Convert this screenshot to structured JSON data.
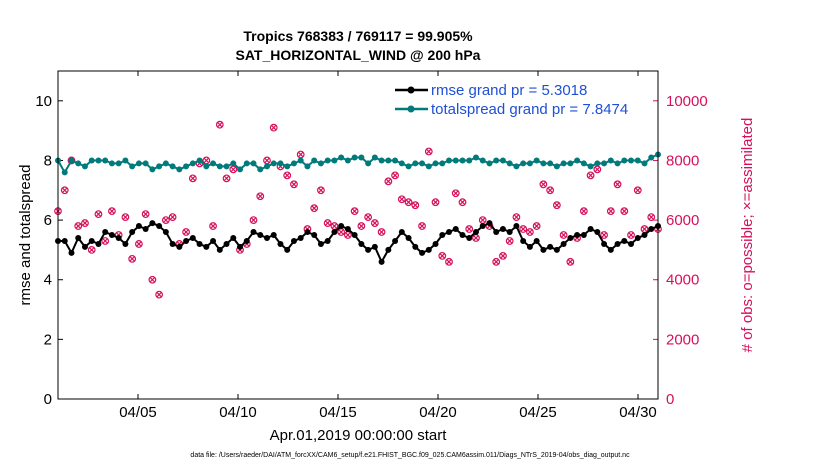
{
  "chart_data": {
    "type": "line",
    "title": "Tropics 768383 / 769117 = 99.905%",
    "subtitle": "SAT_HORIZONTAL_WIND @ 200 hPa",
    "xlabel": "Apr.01,2019 00:00:00 start",
    "ylabel_left": "rmse and totalspread",
    "ylabel_right": "# of obs: o=possible; ×=assimilated",
    "xlim": [
      1,
      31
    ],
    "ylim_left": [
      0,
      11
    ],
    "ylim_right": [
      0,
      11000
    ],
    "x_ticks": [
      5,
      10,
      15,
      20,
      25,
      30
    ],
    "x_tick_labels": [
      "04/05",
      "04/10",
      "04/15",
      "04/20",
      "04/25",
      "04/30"
    ],
    "y_ticks_left": [
      "0",
      "2",
      "4",
      "6",
      "8",
      "10"
    ],
    "y_ticks_right": [
      "0",
      "2000",
      "4000",
      "6000",
      "8000",
      "10000"
    ],
    "legend_position": "top-right",
    "legend": [
      "rmse grand pr = 5.3018",
      "totalspread grand pr = 7.8474"
    ],
    "series": [
      {
        "name": "rmse",
        "axis": "left",
        "color": "#000000",
        "values": [
          5.3,
          5.3,
          4.9,
          5.4,
          5.1,
          5.3,
          5.2,
          5.6,
          5.5,
          5.4,
          5.2,
          5.6,
          5.8,
          5.7,
          5.9,
          5.8,
          5.6,
          5.2,
          5.1,
          5.3,
          5.4,
          5.2,
          5.1,
          5.3,
          5.0,
          5.2,
          5.4,
          5.1,
          5.3,
          5.6,
          5.5,
          5.4,
          5.5,
          5.2,
          5.0,
          5.3,
          5.4,
          5.6,
          5.5,
          5.2,
          5.3,
          5.6,
          5.8,
          5.7,
          5.5,
          5.2,
          5.0,
          5.1,
          4.6,
          5.0,
          5.3,
          5.6,
          5.4,
          5.1,
          4.9,
          5.0,
          5.2,
          5.5,
          5.6,
          5.7,
          5.5,
          5.4,
          5.6,
          5.8,
          5.9,
          5.6,
          5.7,
          5.6,
          5.8,
          5.3,
          5.1,
          5.3,
          5.0,
          5.1,
          5.0,
          5.2,
          5.4,
          5.5,
          5.5,
          5.7,
          5.6,
          5.2,
          5.0,
          5.2,
          5.3,
          5.2,
          5.4,
          5.5,
          5.7,
          5.8
        ]
      },
      {
        "name": "totalspread",
        "axis": "left",
        "color": "#007a7a",
        "values": [
          8.0,
          7.6,
          8.0,
          7.9,
          7.8,
          8.0,
          8.0,
          8.0,
          7.9,
          7.9,
          8.0,
          7.8,
          7.9,
          7.9,
          7.7,
          7.8,
          7.9,
          7.8,
          7.7,
          7.8,
          7.9,
          8.0,
          7.8,
          7.9,
          7.8,
          7.8,
          7.9,
          7.7,
          7.9,
          7.9,
          7.7,
          7.8,
          7.9,
          7.9,
          7.8,
          7.9,
          8.0,
          7.8,
          8.0,
          7.9,
          8.0,
          8.0,
          8.1,
          8.0,
          8.1,
          8.1,
          7.9,
          8.1,
          8.0,
          8.0,
          8.0,
          7.9,
          7.8,
          7.9,
          7.9,
          7.8,
          7.9,
          7.9,
          8.0,
          8.0,
          8.0,
          8.0,
          8.1,
          8.0,
          7.9,
          8.0,
          8.0,
          7.9,
          7.8,
          7.9,
          7.9,
          8.0,
          7.9,
          7.9,
          7.8,
          7.9,
          7.9,
          8.0,
          7.9,
          7.8,
          7.9,
          7.9,
          8.0,
          7.9,
          8.0,
          8.0,
          8.0,
          7.9,
          8.1,
          8.2
        ]
      },
      {
        "name": "obs_possible",
        "axis": "right",
        "color": "#d6105a",
        "values": [
          6300,
          7000,
          8000,
          5800,
          5900,
          5000,
          6200,
          5300,
          6300,
          5500,
          6100,
          4700,
          5200,
          6200,
          4000,
          3500,
          6000,
          6100,
          5200,
          5600,
          7400,
          7900,
          8000,
          5800,
          9200,
          7400,
          7700,
          5000,
          5200,
          6000,
          6800,
          8000,
          9100,
          7800,
          7500,
          7200,
          8200,
          5700,
          6400,
          7000,
          5900,
          5800,
          5600,
          5500,
          6300,
          5800,
          6100,
          5900,
          5600,
          7300,
          7500,
          6700,
          6600,
          6500,
          5800,
          8300,
          6600,
          4800,
          4600,
          6900,
          6600,
          5700,
          5400,
          6000,
          5800,
          4600,
          4800,
          5300,
          6100,
          5700,
          5600,
          5800,
          7200,
          7000,
          6500,
          5500,
          4600,
          5400,
          6300,
          7500,
          7700,
          5500,
          6300,
          7200,
          6300,
          5500,
          7000,
          5700,
          6100,
          5700
        ]
      },
      {
        "name": "obs_assimilated",
        "axis": "right",
        "color": "#d6105a",
        "values": [
          6300,
          7000,
          8000,
          5800,
          5900,
          5000,
          6200,
          5300,
          6300,
          5500,
          6100,
          4700,
          5200,
          6200,
          4000,
          3500,
          6000,
          6100,
          5200,
          5600,
          7400,
          7900,
          8000,
          5800,
          9200,
          7400,
          7700,
          5000,
          5200,
          6000,
          6800,
          8000,
          9100,
          7800,
          7500,
          7200,
          8200,
          5700,
          6400,
          7000,
          5900,
          5800,
          5600,
          5500,
          6300,
          5800,
          6100,
          5900,
          5600,
          7300,
          7500,
          6700,
          6600,
          6500,
          5800,
          8300,
          6600,
          4800,
          4600,
          6900,
          6600,
          5700,
          5400,
          6000,
          5800,
          4600,
          4800,
          5300,
          6100,
          5700,
          5600,
          5800,
          7200,
          7000,
          6500,
          5500,
          4600,
          5400,
          6300,
          7500,
          7700,
          5500,
          6300,
          7200,
          6300,
          5500,
          7000,
          5700,
          6100,
          5700
        ]
      }
    ],
    "footnote": "data file: /Users/raeder/DAI/ATM_forcXX/CAM6_setup/f.e21.FHIST_BGC.f09_025.CAM6assim.011/Diags_NTrS_2019-04/obs_diag_output.nc"
  }
}
